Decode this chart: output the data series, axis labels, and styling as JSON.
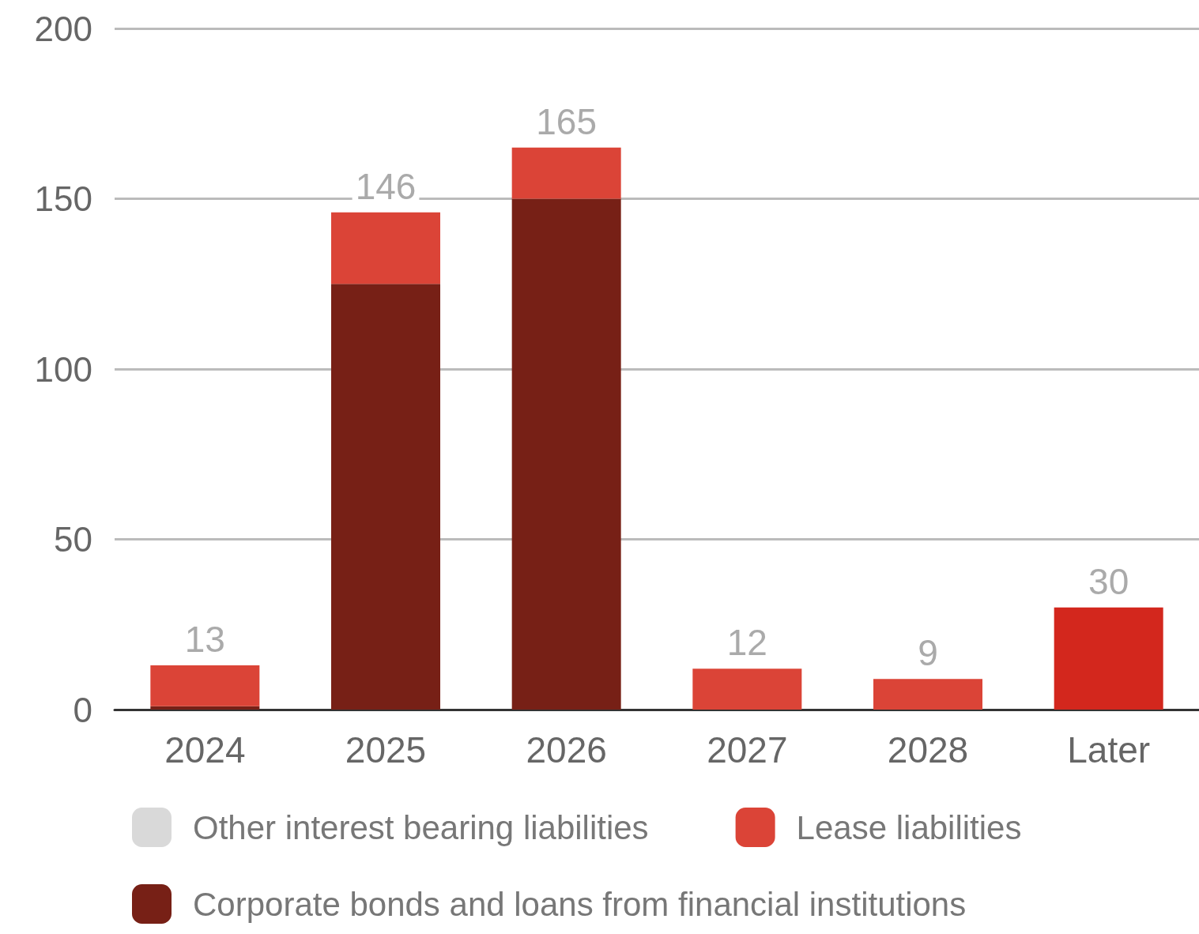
{
  "chart_data": {
    "type": "bar",
    "stacked": true,
    "categories": [
      "2024",
      "2025",
      "2026",
      "2027",
      "2028",
      "Later"
    ],
    "series": [
      {
        "name": "Corporate bonds and loans from financial institutions",
        "color": "#772016",
        "values": [
          1,
          125,
          150,
          null,
          null,
          null
        ]
      },
      {
        "name": "Lease liabilities",
        "color": "#db4437",
        "colors": [
          "#db4437",
          "#db4437",
          "#db4437",
          "#db4437",
          "#db4437",
          "#d3271d"
        ],
        "values": [
          12,
          21,
          15,
          12,
          9,
          30
        ]
      },
      {
        "name": "Other interest bearing liabilities",
        "color": "#d9d9d9",
        "values": [
          null,
          null,
          null,
          null,
          null,
          null
        ]
      }
    ],
    "totals": [
      "13",
      "146",
      "165",
      "12",
      "9",
      "30"
    ],
    "ylim": [
      0,
      200
    ],
    "yticks": [
      0,
      50,
      100,
      150,
      200
    ],
    "grid": "y",
    "legend": "bottom"
  }
}
